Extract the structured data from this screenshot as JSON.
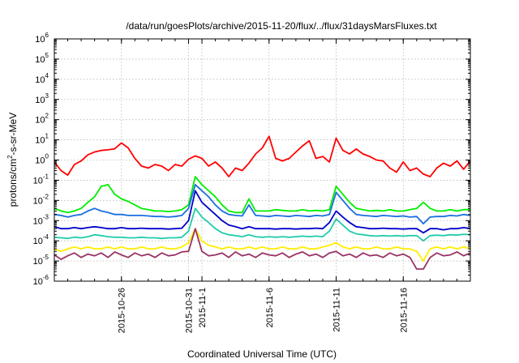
{
  "chart_data": {
    "type": "line",
    "title": "/data/run/goesPlots/archive/2015-11-20/flux/../flux/31daysMarsFluxes.txt",
    "xlabel": "Coordinated Universal Time (UTC)",
    "ylabel": "protons/cm²-s-sr-MeV",
    "ylabel_base": "protons/cm",
    "ylabel_sup": "2",
    "ylabel_rest": "-s-sr-MeV",
    "y_scale": "log",
    "ylim": [
      1e-06,
      1000000.0
    ],
    "y_ticks": [
      {
        "base": "10",
        "exp": "-6"
      },
      {
        "base": "10",
        "exp": "-5"
      },
      {
        "base": "10",
        "exp": "-4"
      },
      {
        "base": "10",
        "exp": "-3"
      },
      {
        "base": "10",
        "exp": "-2"
      },
      {
        "base": "10",
        "exp": "-1"
      },
      {
        "base": "10",
        "exp": "0"
      },
      {
        "base": "10",
        "exp": "1"
      },
      {
        "base": "10",
        "exp": "2"
      },
      {
        "base": "10",
        "exp": "3"
      },
      {
        "base": "10",
        "exp": "4"
      },
      {
        "base": "10",
        "exp": "5"
      },
      {
        "base": "10",
        "exp": "6"
      }
    ],
    "x_range_days": [
      0,
      31
    ],
    "x_ticks": [
      {
        "label": "2015-10-26",
        "day": 5
      },
      {
        "label": "2015-10-31",
        "day": 10
      },
      {
        "label": "2015-11-1",
        "day": 11
      },
      {
        "label": "2015-11-6",
        "day": 16
      },
      {
        "label": "2015-11-11",
        "day": 21
      },
      {
        "label": "2015-11-16",
        "day": 26
      }
    ],
    "grid": true,
    "legend": "none",
    "series": [
      {
        "color": "#ff0000",
        "x": [
          0,
          0.5,
          1,
          1.5,
          2,
          2.5,
          3,
          3.5,
          4,
          4.5,
          5,
          5.5,
          6,
          6.5,
          7,
          7.5,
          8,
          8.5,
          9,
          9.5,
          10,
          10.5,
          11,
          11.5,
          12,
          12.5,
          13,
          13.5,
          14,
          14.5,
          15,
          15.5,
          16,
          16.5,
          17,
          17.5,
          18,
          18.5,
          19,
          19.5,
          20,
          20.5,
          21,
          21.5,
          22,
          22.5,
          23,
          23.5,
          24,
          24.5,
          25,
          25.5,
          26,
          26.5,
          27,
          27.5,
          28,
          28.5,
          29,
          29.5,
          30,
          30.5,
          31
        ],
        "y": [
          0.8,
          0.3,
          0.18,
          0.6,
          0.9,
          1.8,
          2.5,
          3,
          3.2,
          3.6,
          7,
          4,
          1.2,
          0.5,
          0.4,
          0.6,
          0.5,
          0.3,
          0.6,
          0.5,
          1.1,
          1.6,
          1.2,
          0.5,
          0.8,
          0.4,
          0.15,
          0.4,
          0.3,
          0.7,
          2,
          4,
          15,
          1.2,
          0.9,
          1.2,
          2.5,
          5,
          9,
          1.2,
          1.5,
          0.8,
          12,
          3,
          2,
          3.5,
          2,
          1.5,
          1,
          0.9,
          0.4,
          0.25,
          0.8,
          0.3,
          0.4,
          0.2,
          0.15,
          0.4,
          0.7,
          0.5,
          0.9,
          0.35,
          0.9
        ]
      },
      {
        "color": "#00ee00",
        "x": [
          0,
          0.5,
          1,
          1.5,
          2,
          2.5,
          3,
          3.5,
          4,
          4.5,
          5,
          5.5,
          6,
          6.5,
          7,
          7.5,
          8,
          8.5,
          9,
          9.5,
          10,
          10.5,
          11,
          11.5,
          12,
          12.5,
          13,
          13.5,
          14,
          14.5,
          15,
          15.5,
          16,
          16.5,
          17,
          17.5,
          18,
          18.5,
          19,
          19.5,
          20,
          20.5,
          21,
          21.5,
          22,
          22.5,
          23,
          23.5,
          24,
          24.5,
          25,
          25.5,
          26,
          26.5,
          27,
          27.5,
          28,
          28.5,
          29,
          29.5,
          30,
          30.5,
          31
        ],
        "y": [
          0.004,
          0.003,
          0.0025,
          0.003,
          0.004,
          0.008,
          0.015,
          0.05,
          0.06,
          0.02,
          0.012,
          0.009,
          0.006,
          0.004,
          0.0035,
          0.003,
          0.003,
          0.0028,
          0.003,
          0.0035,
          0.006,
          0.15,
          0.06,
          0.03,
          0.015,
          0.006,
          0.003,
          0.0025,
          0.0025,
          0.012,
          0.003,
          0.003,
          0.003,
          0.0035,
          0.0032,
          0.003,
          0.003,
          0.0035,
          0.003,
          0.0032,
          0.003,
          0.0035,
          0.05,
          0.02,
          0.008,
          0.004,
          0.0035,
          0.003,
          0.0032,
          0.003,
          0.0035,
          0.003,
          0.003,
          0.0035,
          0.004,
          0.008,
          0.004,
          0.003,
          0.003,
          0.0035,
          0.003,
          0.0035,
          0.0035
        ]
      },
      {
        "color": "#1a6fdf",
        "x": [
          0,
          0.5,
          1,
          1.5,
          2,
          2.5,
          3,
          3.5,
          4,
          4.5,
          5,
          5.5,
          6,
          6.5,
          7,
          7.5,
          8,
          8.5,
          9,
          9.5,
          10,
          10.5,
          11,
          11.5,
          12,
          12.5,
          13,
          13.5,
          14,
          14.5,
          15,
          15.5,
          16,
          16.5,
          17,
          17.5,
          18,
          18.5,
          19,
          19.5,
          20,
          20.5,
          21,
          21.5,
          22,
          22.5,
          23,
          23.5,
          24,
          24.5,
          25,
          25.5,
          26,
          26.5,
          27,
          27.5,
          28,
          28.5,
          29,
          29.5,
          30,
          30.5,
          31
        ],
        "y": [
          0.002,
          0.0018,
          0.0015,
          0.0018,
          0.002,
          0.003,
          0.004,
          0.003,
          0.0025,
          0.002,
          0.002,
          0.0018,
          0.0018,
          0.0018,
          0.0017,
          0.0016,
          0.0016,
          0.0015,
          0.0016,
          0.0018,
          0.004,
          0.06,
          0.03,
          0.015,
          0.006,
          0.003,
          0.002,
          0.0018,
          0.0017,
          0.006,
          0.0018,
          0.0017,
          0.0016,
          0.0018,
          0.0017,
          0.0016,
          0.0018,
          0.0017,
          0.0016,
          0.0018,
          0.0017,
          0.002,
          0.025,
          0.01,
          0.004,
          0.002,
          0.0018,
          0.0017,
          0.0016,
          0.0018,
          0.0017,
          0.0016,
          0.0017,
          0.0015,
          0.0016,
          0.0007,
          0.0015,
          0.0016,
          0.0016,
          0.0018,
          0.0017,
          0.002,
          0.0018
        ]
      },
      {
        "color": "#0000cc",
        "x": [
          0,
          0.5,
          1,
          1.5,
          2,
          2.5,
          3,
          3.5,
          4,
          4.5,
          5,
          5.5,
          6,
          6.5,
          7,
          7.5,
          8,
          8.5,
          9,
          9.5,
          10,
          10.5,
          11,
          11.5,
          12,
          12.5,
          13,
          13.5,
          14,
          14.5,
          15,
          15.5,
          16,
          16.5,
          17,
          17.5,
          18,
          18.5,
          19,
          19.5,
          20,
          20.5,
          21,
          21.5,
          22,
          22.5,
          23,
          23.5,
          24,
          24.5,
          25,
          25.5,
          26,
          26.5,
          27,
          27.5,
          28,
          28.5,
          29,
          29.5,
          30,
          30.5,
          31
        ],
        "y": [
          0.0005,
          0.0004,
          0.0004,
          0.00045,
          0.0004,
          0.00045,
          0.0005,
          0.00045,
          0.0004,
          0.0004,
          0.00045,
          0.0004,
          0.0004,
          0.00042,
          0.0004,
          0.0004,
          0.0004,
          0.00038,
          0.0004,
          0.00042,
          0.001,
          0.03,
          0.008,
          0.004,
          0.002,
          0.001,
          0.0006,
          0.0005,
          0.0004,
          0.0005,
          0.0004,
          0.0004,
          0.0004,
          0.00038,
          0.0004,
          0.0004,
          0.00038,
          0.0004,
          0.0004,
          0.00042,
          0.0004,
          0.0008,
          0.003,
          0.0015,
          0.0008,
          0.0005,
          0.00045,
          0.0004,
          0.0004,
          0.00042,
          0.0004,
          0.0004,
          0.00038,
          0.0004,
          0.0004,
          0.00025,
          0.0004,
          0.0004,
          0.00035,
          0.0004,
          0.0004,
          0.00045,
          0.0004
        ]
      },
      {
        "color": "#22ccaa",
        "x": [
          0,
          0.5,
          1,
          1.5,
          2,
          2.5,
          3,
          3.5,
          4,
          4.5,
          5,
          5.5,
          6,
          6.5,
          7,
          7.5,
          8,
          8.5,
          9,
          9.5,
          10,
          10.5,
          11,
          11.5,
          12,
          12.5,
          13,
          13.5,
          14,
          14.5,
          15,
          15.5,
          16,
          16.5,
          17,
          17.5,
          18,
          18.5,
          19,
          19.5,
          20,
          20.5,
          21,
          21.5,
          22,
          22.5,
          23,
          23.5,
          24,
          24.5,
          25,
          25.5,
          26,
          26.5,
          27,
          27.5,
          28,
          28.5,
          29,
          29.5,
          30,
          30.5,
          31
        ],
        "y": [
          0.00015,
          0.00014,
          0.00013,
          0.00015,
          0.00014,
          0.00016,
          0.0002,
          0.00018,
          0.00016,
          0.00015,
          0.00015,
          0.00014,
          0.00014,
          0.00015,
          0.00014,
          0.00014,
          0.00013,
          0.00014,
          0.00014,
          0.00015,
          0.0003,
          0.004,
          0.0015,
          0.0008,
          0.0004,
          0.00025,
          0.0002,
          0.00018,
          0.00016,
          0.0002,
          0.00016,
          0.00015,
          0.00016,
          0.00015,
          0.00016,
          0.00015,
          0.00016,
          0.00017,
          0.00016,
          0.00017,
          0.00016,
          0.0003,
          0.0012,
          0.0006,
          0.0003,
          0.00022,
          0.0002,
          0.00018,
          0.00017,
          0.00018,
          0.00017,
          0.00018,
          0.00017,
          0.00018,
          0.00018,
          0.0001,
          0.00018,
          0.00019,
          0.00018,
          0.0002,
          0.00019,
          0.00021,
          0.0002
        ]
      },
      {
        "color": "#ffee00",
        "x": [
          0,
          0.5,
          1,
          1.5,
          2,
          2.5,
          3,
          3.5,
          4,
          4.5,
          5,
          5.5,
          6,
          6.5,
          7,
          7.5,
          8,
          8.5,
          9,
          9.5,
          10,
          10.5,
          11,
          11.5,
          12,
          12.5,
          13,
          13.5,
          14,
          14.5,
          15,
          15.5,
          16,
          16.5,
          17,
          17.5,
          18,
          18.5,
          19,
          19.5,
          20,
          20.5,
          21,
          21.5,
          22,
          22.5,
          23,
          23.5,
          24,
          24.5,
          25,
          25.5,
          26,
          26.5,
          27,
          27.5,
          28,
          28.5,
          29,
          29.5,
          30,
          30.5,
          31
        ],
        "y": [
          4e-05,
          3e-05,
          4e-05,
          5e-05,
          4e-05,
          5e-05,
          4e-05,
          4e-05,
          5e-05,
          4e-05,
          5e-05,
          4e-05,
          4e-05,
          5e-05,
          4e-05,
          4e-05,
          5e-05,
          4e-05,
          4e-05,
          5e-05,
          8e-05,
          0.0004,
          0.0001,
          6e-05,
          5e-05,
          4e-05,
          5e-05,
          4e-05,
          4e-05,
          5e-05,
          4e-05,
          5e-05,
          4e-05,
          4e-05,
          5e-05,
          4e-05,
          4e-05,
          5e-05,
          4e-05,
          4e-05,
          5e-05,
          6e-05,
          8e-05,
          5e-05,
          4e-05,
          5e-05,
          4e-05,
          4e-05,
          5e-05,
          4e-05,
          4e-05,
          5e-05,
          4e-05,
          4e-05,
          3e-05,
          1e-05,
          4e-05,
          5e-05,
          4e-05,
          5e-05,
          4e-05,
          5e-05,
          4e-05
        ]
      },
      {
        "color": "#993366",
        "x": [
          0,
          0.5,
          1,
          1.5,
          2,
          2.5,
          3,
          3.5,
          4,
          4.5,
          5,
          5.5,
          6,
          6.5,
          7,
          7.5,
          8,
          8.5,
          9,
          9.5,
          10,
          10.5,
          11,
          11.5,
          12,
          12.5,
          13,
          13.5,
          14,
          14.5,
          15,
          15.5,
          16,
          16.5,
          17,
          17.5,
          18,
          18.5,
          19,
          19.5,
          20,
          20.5,
          21,
          21.5,
          22,
          22.5,
          23,
          23.5,
          24,
          24.5,
          25,
          25.5,
          26,
          26.5,
          27,
          27.5,
          28,
          28.5,
          29,
          29.5,
          30,
          30.5,
          31
        ],
        "y": [
          2e-05,
          1.2e-05,
          1.8e-05,
          2.5e-05,
          1.5e-05,
          2.2e-05,
          1.8e-05,
          2.5e-05,
          1.5e-05,
          2.8e-05,
          2e-05,
          1.5e-05,
          2.5e-05,
          1.8e-05,
          2.2e-05,
          1.5e-05,
          2.5e-05,
          1.8e-05,
          2e-05,
          2.8e-05,
          3e-05,
          0.0004,
          3e-05,
          1.8e-05,
          2e-05,
          2.5e-05,
          1.5e-05,
          2.8e-05,
          1.8e-05,
          2.2e-05,
          1.5e-05,
          2.5e-05,
          2e-05,
          1.8e-05,
          2.5e-05,
          1.5e-05,
          2.2e-05,
          2.8e-05,
          1.8e-05,
          2.2e-05,
          1.5e-05,
          2.5e-05,
          3e-05,
          1.8e-05,
          2.2e-05,
          1.5e-05,
          2.5e-05,
          1.8e-05,
          2e-05,
          1.5e-05,
          2.5e-05,
          1.8e-05,
          2.2e-05,
          1.5e-05,
          4e-06,
          4e-06,
          1.5e-05,
          2.5e-05,
          1.8e-05,
          2e-05,
          2.8e-05,
          1.8e-05,
          2.5e-05
        ]
      }
    ]
  }
}
